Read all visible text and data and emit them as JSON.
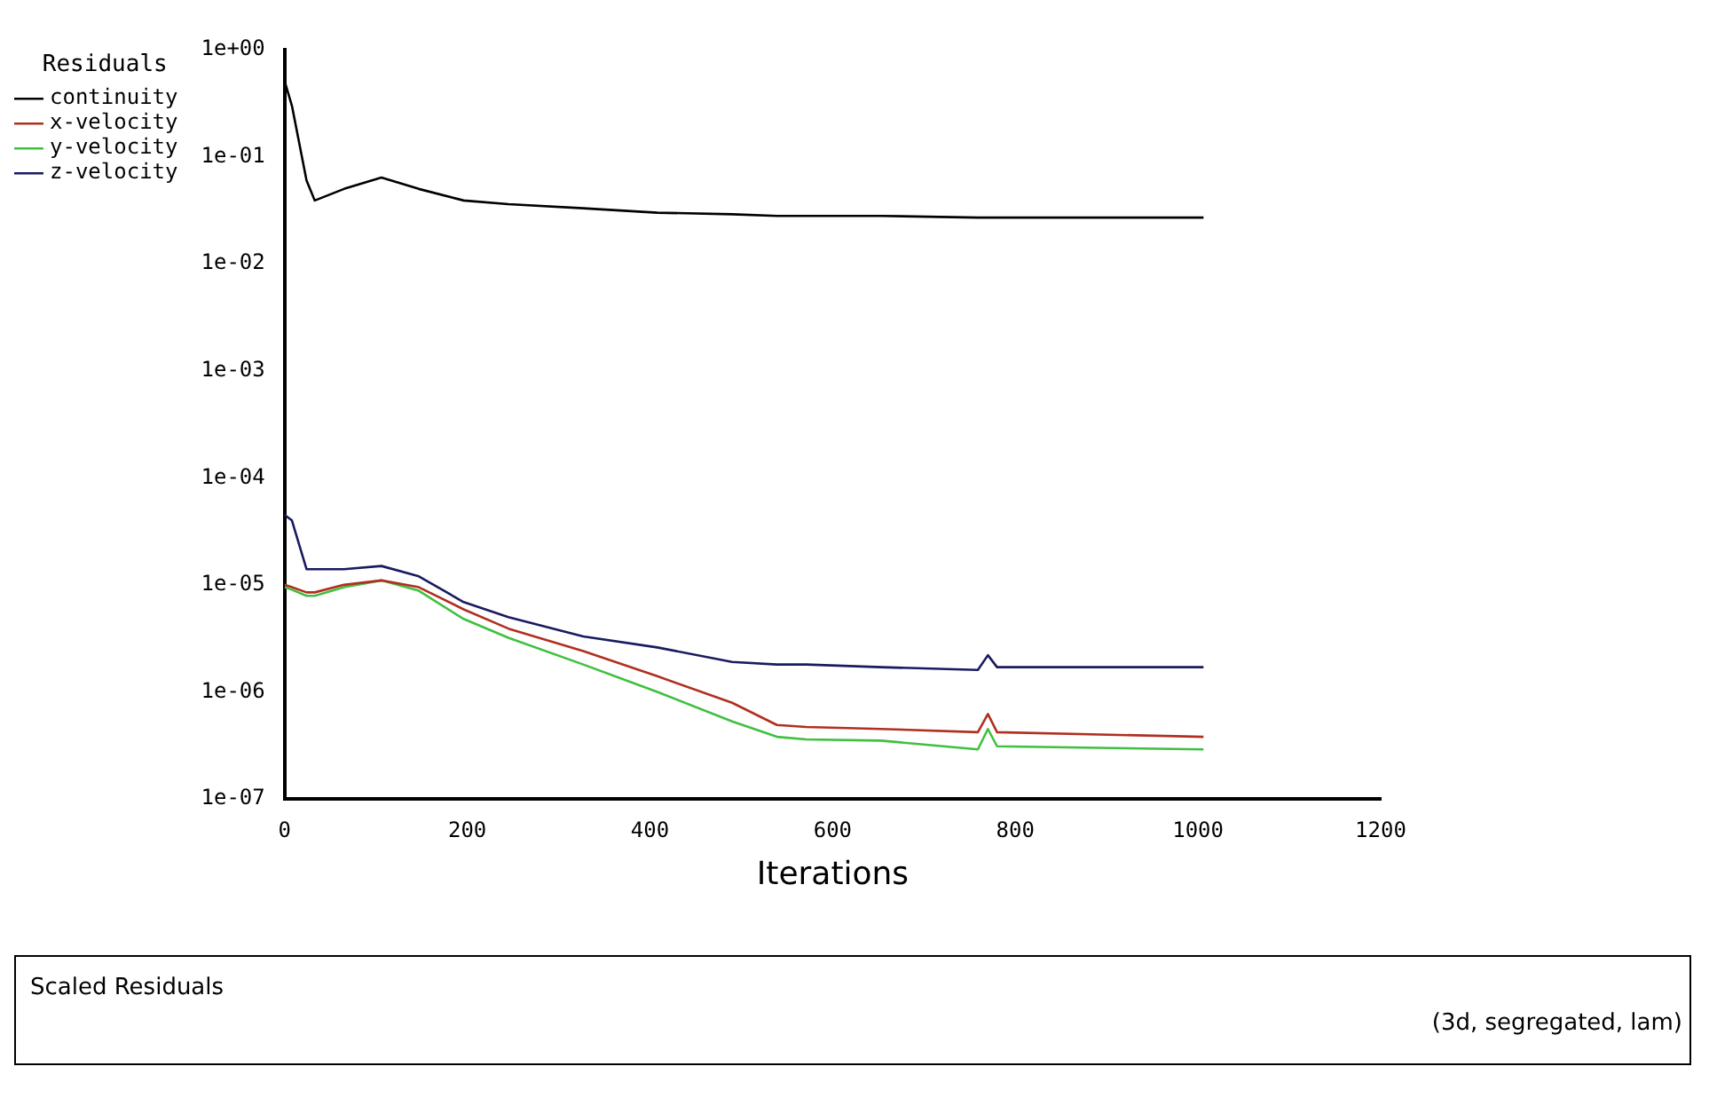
{
  "chart_data": {
    "type": "line",
    "xlabel": "Iterations",
    "legend_title": "Residuals",
    "legend": "top left",
    "log": "y",
    "grid": false,
    "marker": "none",
    "line_style": "solid",
    "xlim": [
      0,
      1200
    ],
    "xticks": [
      0,
      200,
      400,
      600,
      800,
      1000,
      1200
    ],
    "ylim": [
      1e-07,
      1
    ],
    "yticks": [
      {
        "value": 1,
        "label": "1e+00"
      },
      {
        "value": 0.1,
        "label": "1e-01"
      },
      {
        "value": 0.01,
        "label": "1e-02"
      },
      {
        "value": 0.001,
        "label": "1e-03"
      },
      {
        "value": 0.0001,
        "label": "1e-04"
      },
      {
        "value": 1e-05,
        "label": "1e-05"
      },
      {
        "value": 1e-06,
        "label": "1e-06"
      },
      {
        "value": 1e-07,
        "label": "1e-07"
      }
    ],
    "x": [
      0,
      8,
      24,
      33,
      65,
      106,
      147,
      196,
      245,
      327,
      408,
      490,
      539,
      571,
      653,
      759,
      770,
      780,
      1006
    ],
    "series": [
      {
        "name": "continuity",
        "color": "#000000",
        "values": [
          0.51,
          0.3,
          0.06,
          0.039,
          0.05,
          0.064,
          0.05,
          0.039,
          0.036,
          0.033,
          0.03,
          0.029,
          0.028,
          0.028,
          0.028,
          0.027,
          0.027,
          0.027,
          0.027
        ]
      },
      {
        "name": "x-velocity",
        "color": "#b03020",
        "values": [
          1e-05,
          9.5e-06,
          8.5e-06,
          8.5e-06,
          1e-05,
          1.1e-05,
          9.5e-06,
          5.9e-06,
          3.9e-06,
          2.4e-06,
          1.4e-06,
          7.9e-07,
          4.9e-07,
          4.7e-07,
          4.5e-07,
          4.2e-07,
          6.2e-07,
          4.2e-07,
          3.8e-07
        ]
      },
      {
        "name": "y-velocity",
        "color": "#40c040",
        "values": [
          9.5e-06,
          9e-06,
          7.9e-06,
          7.9e-06,
          9.5e-06,
          1.1e-05,
          8.8e-06,
          4.8e-06,
          3.2e-06,
          1.8e-06,
          1e-06,
          5.3e-07,
          3.8e-07,
          3.6e-07,
          3.5e-07,
          2.9e-07,
          4.5e-07,
          3.1e-07,
          2.9e-07
        ]
      },
      {
        "name": "z-velocity",
        "color": "#1a1a60",
        "values": [
          4.5e-05,
          4e-05,
          1.4e-05,
          1.4e-05,
          1.4e-05,
          1.5e-05,
          1.2e-05,
          6.9e-06,
          5e-06,
          3.3e-06,
          2.6e-06,
          1.9e-06,
          1.8e-06,
          1.8e-06,
          1.7e-06,
          1.6e-06,
          2.2e-06,
          1.7e-06,
          1.7e-06
        ]
      }
    ],
    "annotations": [
      "Scaled Residuals",
      "(3d, segregated, lam)"
    ]
  }
}
